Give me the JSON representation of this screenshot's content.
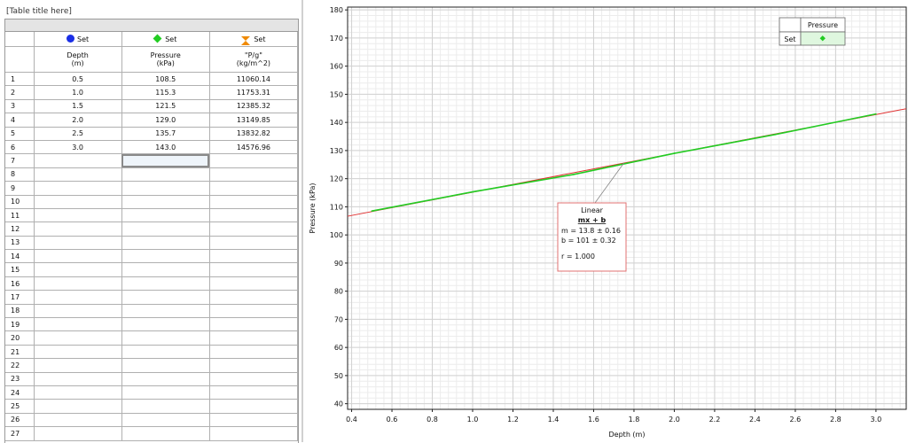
{
  "table": {
    "title": "[Table title here]",
    "columns": [
      {
        "set_label": "Set",
        "marker": "blue-circle",
        "name": "Depth",
        "unit": "(m)"
      },
      {
        "set_label": "Set",
        "marker": "green-diamond",
        "name": "Pressure",
        "unit": "(kPa)"
      },
      {
        "set_label": "Set",
        "marker": "orange-hourglass",
        "name": "\"P/g\"",
        "unit": "(kg/m^2)"
      }
    ],
    "rows": [
      [
        "0.5",
        "108.5",
        "11060.14"
      ],
      [
        "1.0",
        "115.3",
        "11753.31"
      ],
      [
        "1.5",
        "121.5",
        "12385.32"
      ],
      [
        "2.0",
        "129.0",
        "13149.85"
      ],
      [
        "2.5",
        "135.7",
        "13832.82"
      ],
      [
        "3.0",
        "143.0",
        "14576.96"
      ]
    ],
    "visible_row_numbers": [
      "1",
      "2",
      "3",
      "4",
      "5",
      "6",
      "7",
      "8",
      "9",
      "10",
      "11",
      "12",
      "13",
      "14",
      "15",
      "16",
      "17",
      "18",
      "19",
      "20",
      "21",
      "22",
      "23",
      "24",
      "25",
      "26",
      "27"
    ],
    "selected_row_index": 6,
    "selected_col_index": 1
  },
  "legend": {
    "header": "Pressure",
    "row_label": "Set"
  },
  "fit_box": {
    "title": "Linear",
    "equation": "mx + b",
    "m_line": "m = 13.8 ± 0.16",
    "b_line": "b = 101 ± 0.32",
    "r_line": "r = 1.000"
  },
  "colors": {
    "data_line": "#22cc22",
    "fit_line": "#e03030",
    "fit_box_border": "#e07070"
  },
  "chart_data": {
    "type": "line",
    "xlabel": "Depth (m)",
    "ylabel": "Pressure (kPa)",
    "xlim": [
      0.38,
      3.15
    ],
    "ylim": [
      38,
      181
    ],
    "x_ticks": [
      0.4,
      0.6,
      0.8,
      1.0,
      1.2,
      1.4,
      1.6,
      1.8,
      2.0,
      2.2,
      2.4,
      2.6,
      2.8,
      3.0
    ],
    "x_tick_labels": [
      "0.4",
      "0.6",
      "0.8",
      "1.0",
      "1.2",
      "1.4",
      "1.6",
      "1.8",
      "2.0",
      "2.2",
      "2.4",
      "2.6",
      "2.8",
      "3.0"
    ],
    "y_ticks": [
      40,
      50,
      60,
      70,
      80,
      90,
      100,
      110,
      120,
      130,
      140,
      150,
      160,
      170,
      180
    ],
    "y_tick_labels": [
      "40",
      "50",
      "60",
      "70",
      "80",
      "90",
      "100",
      "110",
      "120",
      "130",
      "140",
      "150",
      "160",
      "170",
      "180"
    ],
    "grid": true,
    "legend_position": "top-right",
    "series": [
      {
        "name": "Pressure",
        "x": [
          0.5,
          1.0,
          1.5,
          2.0,
          2.5,
          3.0
        ],
        "y": [
          108.5,
          115.3,
          121.5,
          129.0,
          135.7,
          143.0
        ]
      }
    ],
    "fit": {
      "type": "linear",
      "m": 13.8,
      "b": 101.4,
      "x_range": [
        0.38,
        3.15
      ]
    }
  }
}
